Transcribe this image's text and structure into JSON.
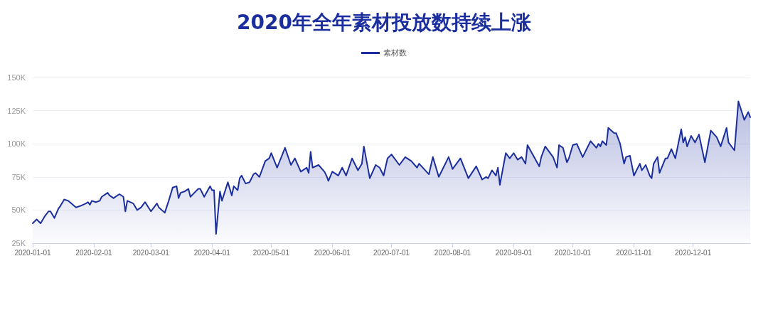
{
  "chart_data": {
    "type": "area",
    "title": "2020年全年素材投放数持续上涨",
    "legend": "top",
    "grid": "y",
    "marker": "none",
    "line_style": "solid",
    "xlim": [
      "2020-01-01",
      "2020-12-30"
    ],
    "xticks": [
      "2020-01-01",
      "2020-02-01",
      "2020-03-01",
      "2020-04-01",
      "2020-05-01",
      "2020-06-01",
      "2020-07-01",
      "2020-08-01",
      "2020-09-01",
      "2020-10-01",
      "2020-11-01",
      "2020-12-01"
    ],
    "ylim": [
      25000,
      150000
    ],
    "yticks": [
      {
        "value": 25000,
        "label": "25K"
      },
      {
        "value": 50000,
        "label": "50K"
      },
      {
        "value": 75000,
        "label": "75K"
      },
      {
        "value": 100000,
        "label": "100K"
      },
      {
        "value": 125000,
        "label": "125K"
      },
      {
        "value": 150000,
        "label": "150K"
      }
    ],
    "x": [
      "2020-01-01",
      "2020-01-03",
      "2020-01-05",
      "2020-01-07",
      "2020-01-09",
      "2020-01-10",
      "2020-01-12",
      "2020-01-14",
      "2020-01-15",
      "2020-01-17",
      "2020-01-19",
      "2020-01-23",
      "2020-01-25",
      "2020-01-28",
      "2020-01-29",
      "2020-01-30",
      "2020-01-31",
      "2020-02-02",
      "2020-02-04",
      "2020-02-05",
      "2020-02-08",
      "2020-02-09",
      "2020-02-11",
      "2020-02-14",
      "2020-02-16",
      "2020-02-17",
      "2020-02-18",
      "2020-02-21",
      "2020-02-23",
      "2020-02-25",
      "2020-02-27",
      "2020-03-01",
      "2020-03-04",
      "2020-03-05",
      "2020-03-08",
      "2020-03-10",
      "2020-03-12",
      "2020-03-14",
      "2020-03-15",
      "2020-03-16",
      "2020-03-18",
      "2020-03-20",
      "2020-03-21",
      "2020-03-23",
      "2020-03-25",
      "2020-03-26",
      "2020-03-28",
      "2020-03-31",
      "2020-04-01",
      "2020-04-02",
      "2020-04-03",
      "2020-04-05",
      "2020-04-06",
      "2020-04-09",
      "2020-04-11",
      "2020-04-12",
      "2020-04-14",
      "2020-04-15",
      "2020-04-16",
      "2020-04-18",
      "2020-04-20",
      "2020-04-22",
      "2020-04-23",
      "2020-04-25",
      "2020-04-28",
      "2020-04-30",
      "2020-05-01",
      "2020-05-04",
      "2020-05-08",
      "2020-05-11",
      "2020-05-13",
      "2020-05-16",
      "2020-05-19",
      "2020-05-20",
      "2020-05-21",
      "2020-05-22",
      "2020-05-25",
      "2020-05-28",
      "2020-05-29",
      "2020-05-30",
      "2020-06-01",
      "2020-06-04",
      "2020-06-06",
      "2020-06-08",
      "2020-06-11",
      "2020-06-14",
      "2020-06-16",
      "2020-06-17",
      "2020-06-20",
      "2020-06-23",
      "2020-06-25",
      "2020-06-27",
      "2020-06-29",
      "2020-07-01",
      "2020-07-05",
      "2020-07-08",
      "2020-07-11",
      "2020-07-14",
      "2020-07-15",
      "2020-07-20",
      "2020-07-22",
      "2020-07-25",
      "2020-07-30",
      "2020-08-01",
      "2020-08-03",
      "2020-08-05",
      "2020-08-09",
      "2020-08-13",
      "2020-08-16",
      "2020-08-18",
      "2020-08-19",
      "2020-08-21",
      "2020-08-23",
      "2020-08-24",
      "2020-08-25",
      "2020-08-28",
      "2020-08-30",
      "2020-09-01",
      "2020-09-03",
      "2020-09-05",
      "2020-09-07",
      "2020-09-08",
      "2020-09-14",
      "2020-09-15",
      "2020-09-17",
      "2020-09-21",
      "2020-09-23",
      "2020-09-24",
      "2020-09-26",
      "2020-09-28",
      "2020-09-29",
      "2020-10-01",
      "2020-10-03",
      "2020-10-06",
      "2020-10-10",
      "2020-10-13",
      "2020-10-14",
      "2020-10-15",
      "2020-10-16",
      "2020-10-18",
      "2020-10-19",
      "2020-10-22",
      "2020-10-23",
      "2020-10-25",
      "2020-10-27",
      "2020-10-28",
      "2020-10-30",
      "2020-11-01",
      "2020-11-04",
      "2020-11-05",
      "2020-11-07",
      "2020-11-09",
      "2020-11-10",
      "2020-11-11",
      "2020-11-13",
      "2020-11-14",
      "2020-11-17",
      "2020-11-18",
      "2020-11-20",
      "2020-11-22",
      "2020-11-25",
      "2020-11-26",
      "2020-11-27",
      "2020-11-28",
      "2020-11-30",
      "2020-12-02",
      "2020-12-04",
      "2020-12-07",
      "2020-12-10",
      "2020-12-13",
      "2020-12-15",
      "2020-12-18",
      "2020-12-19",
      "2020-12-22",
      "2020-12-24",
      "2020-12-27",
      "2020-12-29",
      "2020-12-30"
    ],
    "series": [
      {
        "name": "素材数",
        "color": "#1b2e9e",
        "values": [
          40000,
          43000,
          40000,
          45000,
          49000,
          49000,
          44000,
          51000,
          53000,
          58000,
          57000,
          52000,
          53000,
          55000,
          56000,
          54000,
          57000,
          56000,
          57000,
          60000,
          63000,
          61000,
          59000,
          62000,
          60000,
          49000,
          57000,
          55000,
          50000,
          52000,
          56000,
          49000,
          55000,
          52000,
          48000,
          57000,
          67000,
          68000,
          59000,
          63000,
          64000,
          66000,
          60000,
          63000,
          66000,
          66000,
          60000,
          68000,
          65000,
          65000,
          32000,
          64000,
          57000,
          71000,
          61000,
          68000,
          65000,
          74000,
          76000,
          70000,
          71000,
          77000,
          78000,
          75000,
          87000,
          89000,
          93000,
          82000,
          97000,
          84000,
          89000,
          79000,
          82000,
          78000,
          94000,
          82000,
          84000,
          79000,
          76000,
          72000,
          79000,
          76000,
          82000,
          76000,
          89000,
          80000,
          85000,
          98000,
          74000,
          84000,
          82000,
          76000,
          89000,
          92000,
          84000,
          90000,
          87000,
          82000,
          85000,
          77000,
          90000,
          75000,
          90000,
          81000,
          85000,
          89000,
          74000,
          83000,
          73000,
          75000,
          74000,
          80000,
          76000,
          82000,
          69000,
          93000,
          89000,
          93000,
          88000,
          90000,
          85000,
          99000,
          83000,
          90000,
          98000,
          90000,
          82000,
          99000,
          97000,
          86000,
          89000,
          99000,
          100000,
          90000,
          102000,
          97000,
          100000,
          98000,
          102000,
          99000,
          112000,
          108000,
          108000,
          100000,
          85000,
          90000,
          91000,
          76000,
          85000,
          80000,
          84000,
          76000,
          74000,
          85000,
          90000,
          78000,
          89000,
          89000,
          96000,
          89000,
          111000,
          101000,
          105000,
          98000,
          106000,
          101000,
          107000,
          86000,
          110000,
          105000,
          98000,
          112000,
          101000,
          95000,
          132000,
          118000,
          124000,
          120000
        ]
      }
    ]
  }
}
